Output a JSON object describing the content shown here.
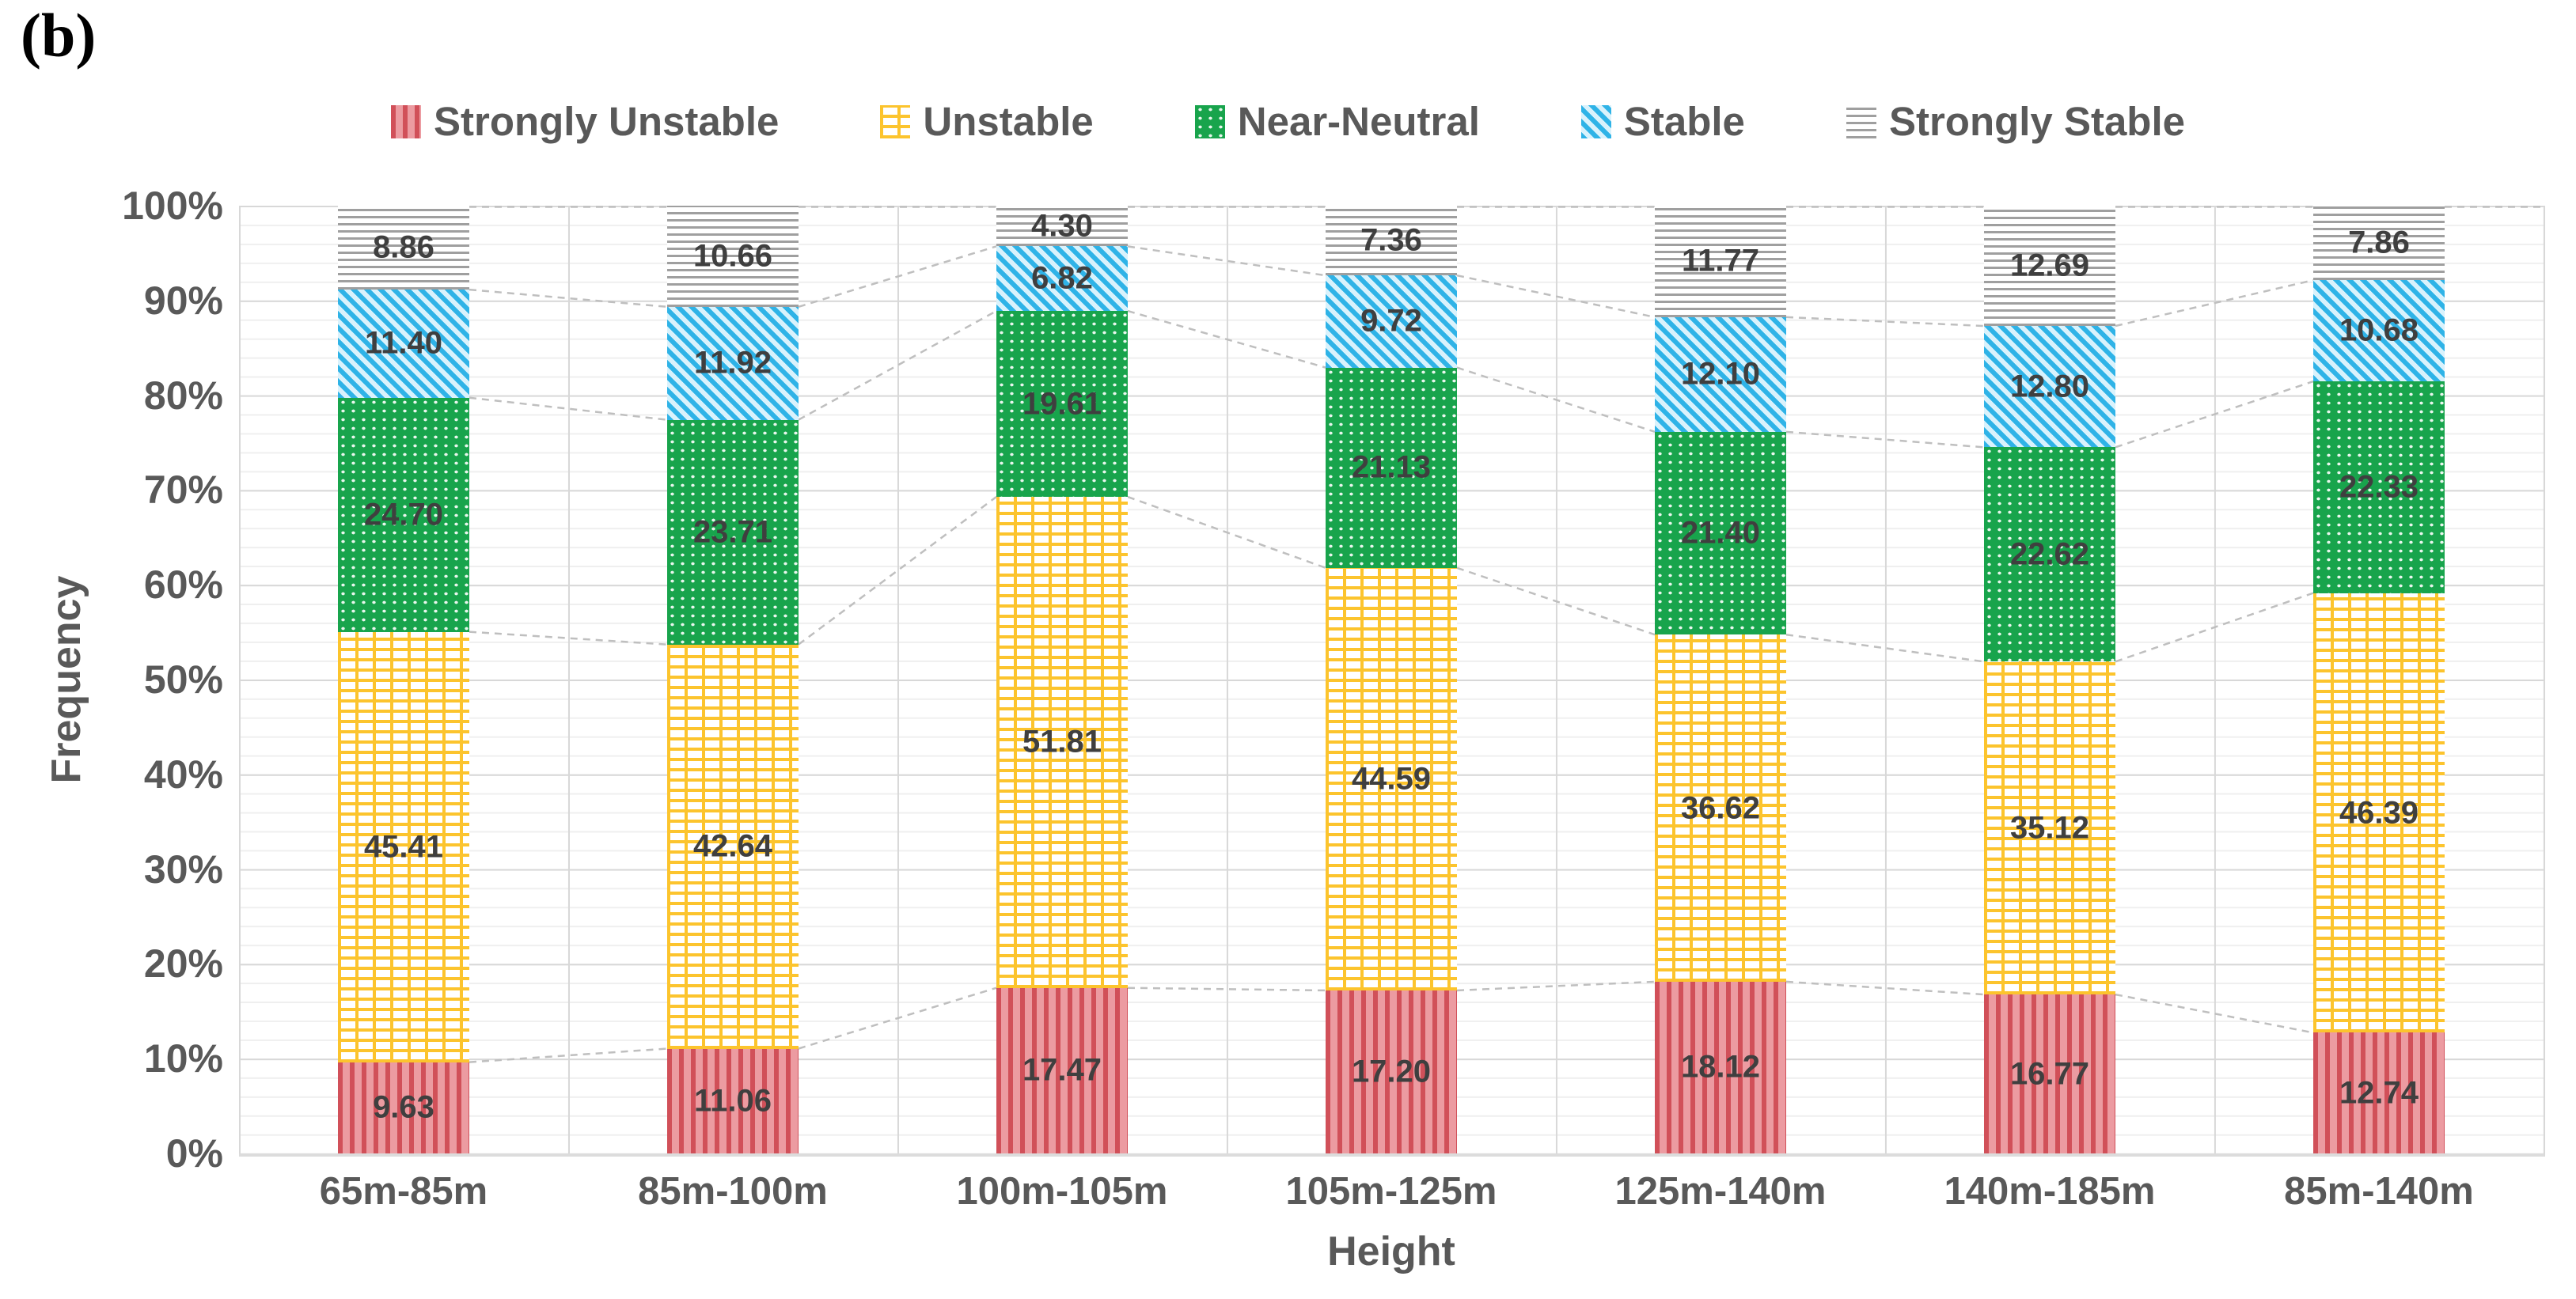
{
  "figure_label": "(b)",
  "axes": {
    "y_title": "Frequency",
    "x_title": "Height"
  },
  "colors": {
    "strongly_unstable": "#D15059",
    "unstable": "#FCC42D",
    "near_neutral": "#18A44C",
    "stable": "#2FB3E7",
    "strongly_stable": "#9F9F9F",
    "axis_text": "#595959",
    "value_label_text": "#3F3F3F",
    "gridline_major": "#D8D8D8",
    "connector_dash": "#BFBFBF"
  },
  "chart_data": {
    "type": "bar",
    "stacked": true,
    "stack_unit": "percent",
    "xlabel": "Height",
    "ylabel": "Frequency",
    "ylim": [
      0,
      100
    ],
    "ytick_step": 10,
    "ytick_labels": [
      "0%",
      "10%",
      "20%",
      "30%",
      "40%",
      "50%",
      "60%",
      "70%",
      "80%",
      "90%",
      "100%"
    ],
    "grid": {
      "major_horizontal_step_pct": 10,
      "minor_horizontal_step_pct": 2,
      "vertical_category_separators": true
    },
    "legend_position": "top",
    "value_labels_shown": true,
    "connector_lines": "gray dashed lines join segment boundaries of adjacent bars",
    "categories": [
      "65m-85m",
      "85m-100m",
      "100m-105m",
      "105m-125m",
      "125m-140m",
      "140m-185m",
      "85m-140m"
    ],
    "series": [
      {
        "name": "Strongly Unstable",
        "pattern": "red-vertical-stripes",
        "color": "#D15059",
        "values": [
          9.63,
          11.06,
          17.47,
          17.2,
          18.12,
          16.77,
          12.74
        ]
      },
      {
        "name": "Unstable",
        "pattern": "yellow-brick",
        "color": "#FCC42D",
        "values": [
          45.41,
          42.64,
          51.81,
          44.59,
          36.62,
          35.12,
          46.39
        ]
      },
      {
        "name": "Near-Neutral",
        "pattern": "green-white-dots",
        "color": "#18A44C",
        "values": [
          24.7,
          23.71,
          19.61,
          21.13,
          21.4,
          22.62,
          22.33
        ]
      },
      {
        "name": "Stable",
        "pattern": "blue-diagonal-stripes",
        "color": "#2FB3E7",
        "values": [
          11.4,
          11.92,
          6.82,
          9.72,
          12.1,
          12.8,
          10.68
        ]
      },
      {
        "name": "Strongly Stable",
        "pattern": "gray-horizontal-lines",
        "color": "#9F9F9F",
        "values": [
          8.86,
          10.66,
          4.3,
          7.36,
          11.77,
          12.69,
          7.86
        ]
      }
    ]
  }
}
